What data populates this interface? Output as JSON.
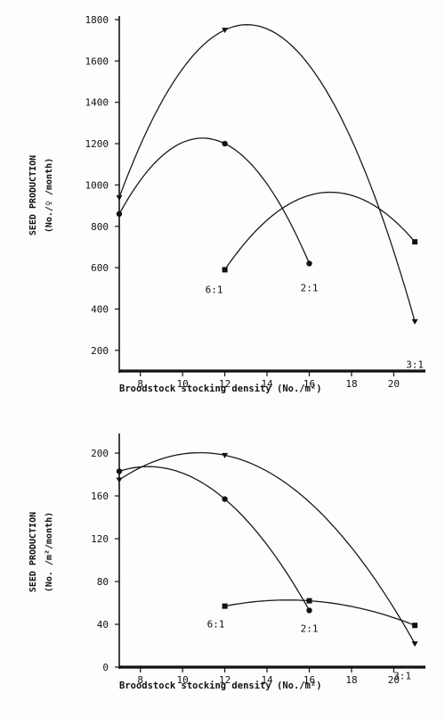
{
  "chart_data": [
    {
      "type": "line",
      "ylabel_line1": "SEED PRODUCTION",
      "ylabel_line2": "(No./♀ /month)",
      "xlabel": "Broodstock stocking density (No./m²)",
      "x_ticks": [
        8,
        10,
        12,
        14,
        16,
        18,
        20
      ],
      "y_ticks": [
        200,
        400,
        600,
        800,
        1000,
        1200,
        1400,
        1600,
        1800
      ],
      "xlim": [
        7,
        21.5
      ],
      "ylim": [
        100,
        1800
      ],
      "series": [
        {
          "name": "3:1",
          "x": [
            7,
            12,
            21
          ],
          "y": [
            940,
            1750,
            340
          ],
          "marker": "triangle",
          "peak_x": 12
        },
        {
          "name": "2:1",
          "x": [
            7,
            12,
            16
          ],
          "y": [
            860,
            1200,
            620
          ],
          "marker": "circle",
          "peak_x": 12
        },
        {
          "name": "6:1",
          "x": [
            12,
            21
          ],
          "y": [
            590,
            725
          ],
          "marker": "square",
          "peak_x": 17
        }
      ]
    },
    {
      "type": "line",
      "ylabel_line1": "SEED PRODUCTION",
      "ylabel_line2": "(No. /m²/month)",
      "xlabel": "Broodstock stocking density (No./m²)",
      "x_ticks": [
        8,
        10,
        12,
        14,
        16,
        18,
        20
      ],
      "y_ticks": [
        0,
        40,
        80,
        120,
        160,
        200
      ],
      "xlim": [
        7,
        21.5
      ],
      "ylim": [
        0,
        215
      ],
      "series": [
        {
          "name": "3:1",
          "x": [
            7,
            12,
            21
          ],
          "y": [
            175,
            198,
            22
          ],
          "marker": "triangle",
          "peak_x": 11.5
        },
        {
          "name": "2:1",
          "x": [
            7,
            12,
            16
          ],
          "y": [
            183,
            157,
            53
          ],
          "marker": "circle",
          "peak_x": 7
        },
        {
          "name": "6:1",
          "x": [
            12,
            16,
            21
          ],
          "y": [
            57,
            62,
            39
          ],
          "marker": "square",
          "peak_x": 15
        }
      ]
    }
  ]
}
